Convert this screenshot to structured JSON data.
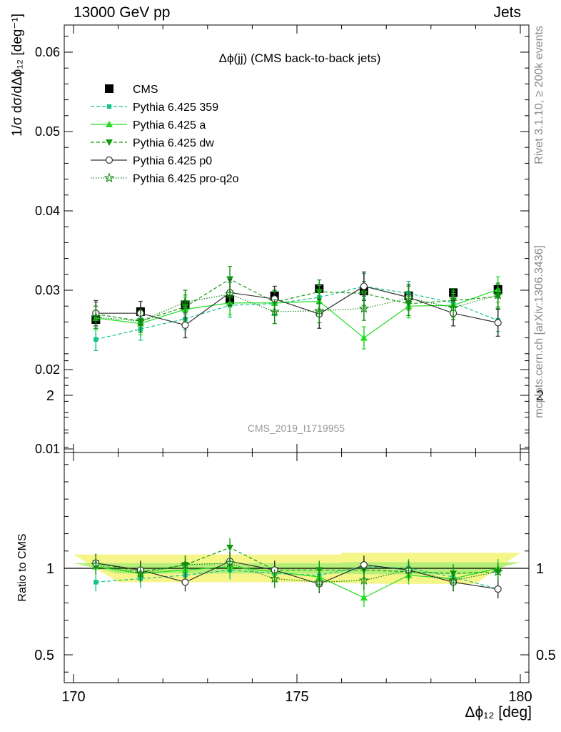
{
  "header": {
    "left": "13000 GeV pp",
    "right": "Jets"
  },
  "side_text": {
    "top": "Rivet 3.1.10, ≥ 200k events",
    "bottom": "mcplots.cern.ch [arXiv:1306.3436]"
  },
  "watermark": "CMS_2019_I1719955",
  "colors": {
    "cms": "#000000",
    "p359": "#16c28a",
    "a": "#22dd22",
    "dw": "#119911",
    "p0": "#333333",
    "proq2o": "#118811",
    "band_outer": "#f5f58a",
    "band_inner": "#b5ef7a"
  },
  "chart_data": [
    {
      "type": "line",
      "title": "Δϕ(jj) (CMS back-to-back jets)",
      "xlabel": "Δϕ₁₂ [deg]",
      "ylabel": "1/σ dσ/dΔϕ₁₂ [deg⁻¹]",
      "xlim": [
        170,
        180
      ],
      "ylim": [
        0.01,
        0.0635
      ],
      "log_y": false,
      "legend_position": "top-left",
      "x_ticks": [
        170,
        175,
        180
      ],
      "y_ticks": [
        0.01,
        0.02,
        0.03,
        0.04,
        0.05,
        0.06
      ],
      "y_tick_labels": [
        "0.01",
        "0.02",
        "0.03",
        "0.04",
        "0.05",
        "0.06"
      ],
      "x": [
        170.5,
        171.5,
        172.5,
        173.5,
        174.5,
        175.5,
        176.5,
        177.5,
        178.5,
        179.5
      ],
      "series": [
        {
          "name": "CMS",
          "key": "cms",
          "marker": "square",
          "dash": "none",
          "values": [
            0.0263,
            0.0273,
            0.0281,
            0.0288,
            0.0293,
            0.0302,
            0.0299,
            0.0293,
            0.0297,
            0.0301
          ],
          "errors": [
            0.0005,
            0.0005,
            0.0005,
            0.0005,
            0.0005,
            0.0005,
            0.0005,
            0.0005,
            0.0005,
            0.0005
          ]
        },
        {
          "name": "Pythia 6.425 359",
          "key": "p359",
          "marker": "small-square",
          "dash": "dashed",
          "values": [
            0.0238,
            0.0251,
            0.0264,
            0.0281,
            0.0283,
            0.0291,
            0.0305,
            0.0296,
            0.0284,
            0.0262
          ],
          "errors": [
            0.0014,
            0.0014,
            0.0014,
            0.0015,
            0.0015,
            0.0015,
            0.0016,
            0.0015,
            0.0015,
            0.0014
          ]
        },
        {
          "name": "Pythia 6.425 a",
          "key": "a",
          "marker": "triangle-up",
          "dash": "solid",
          "values": [
            0.0265,
            0.0258,
            0.0276,
            0.0284,
            0.0284,
            0.0286,
            0.024,
            0.028,
            0.0281,
            0.0301
          ],
          "errors": [
            0.0015,
            0.0014,
            0.0015,
            0.0015,
            0.0015,
            0.0015,
            0.0014,
            0.0015,
            0.0015,
            0.0016
          ]
        },
        {
          "name": "Pythia 6.425 dw",
          "key": "dw",
          "marker": "triangle-down",
          "dash": "dashed",
          "values": [
            0.027,
            0.0261,
            0.0279,
            0.0314,
            0.0285,
            0.0298,
            0.0296,
            0.0283,
            0.0287,
            0.0292
          ],
          "errors": [
            0.0015,
            0.0014,
            0.0015,
            0.0016,
            0.0015,
            0.0015,
            0.0015,
            0.0015,
            0.0015,
            0.0015
          ]
        },
        {
          "name": "Pythia 6.425 p0",
          "key": "p0",
          "marker": "open-circle",
          "dash": "solid",
          "values": [
            0.0271,
            0.0271,
            0.0256,
            0.0297,
            0.0289,
            0.027,
            0.0305,
            0.0291,
            0.0271,
            0.0259
          ],
          "errors": [
            0.0016,
            0.0015,
            0.0016,
            0.0016,
            0.0016,
            0.0018,
            0.0018,
            0.0016,
            0.0016,
            0.0017
          ]
        },
        {
          "name": "Pythia 6.425 pro-q2o",
          "key": "proq2o",
          "marker": "open-star",
          "dash": "dotted",
          "values": [
            0.0266,
            0.0261,
            0.0285,
            0.0295,
            0.0273,
            0.0274,
            0.0277,
            0.029,
            0.0278,
            0.0294
          ],
          "errors": [
            0.0014,
            0.0014,
            0.0015,
            0.0015,
            0.0015,
            0.0015,
            0.0015,
            0.0015,
            0.0015,
            0.0015
          ]
        }
      ]
    },
    {
      "type": "line",
      "title": "",
      "xlabel": "Δϕ₁₂ [deg]",
      "ylabel": "Ratio to CMS",
      "xlim": [
        170,
        180
      ],
      "ylim": [
        0.35,
        2.3
      ],
      "y_ticks": [
        0.5,
        1,
        2
      ],
      "y_tick_labels": [
        "0.5",
        "1",
        "2"
      ],
      "x_ticks": [
        170,
        175,
        180
      ],
      "x_tick_labels": [
        "170",
        "175",
        "180"
      ],
      "reference_line": 1,
      "band_outer": [
        0.08,
        0.08,
        0.08,
        0.08,
        0.08,
        0.08,
        0.09,
        0.09,
        0.09,
        0.09
      ],
      "band_inner": [
        0.03,
        0.03,
        0.03,
        0.03,
        0.03,
        0.03,
        0.035,
        0.035,
        0.035,
        0.035
      ],
      "x": [
        170.5,
        171.5,
        172.5,
        173.5,
        174.5,
        175.5,
        176.5,
        177.5,
        178.5,
        179.5
      ],
      "series": [
        {
          "name": "Pythia 6.425 359",
          "key": "p359",
          "marker": "small-square",
          "dash": "dashed",
          "values": [
            0.92,
            0.94,
            0.96,
            0.99,
            0.97,
            0.96,
            1.01,
            1.0,
            0.95,
            0.88
          ]
        },
        {
          "name": "Pythia 6.425 a",
          "key": "a",
          "marker": "triangle-up",
          "dash": "solid",
          "values": [
            1.01,
            0.97,
            0.99,
            1.01,
            0.98,
            0.95,
            0.83,
            0.96,
            0.94,
            1.0
          ]
        },
        {
          "name": "Pythia 6.425 dw",
          "key": "dw",
          "marker": "triangle-down",
          "dash": "dashed",
          "values": [
            1.03,
            0.98,
            1.02,
            1.12,
            0.99,
            0.99,
            0.99,
            0.98,
            0.97,
            0.98
          ]
        },
        {
          "name": "Pythia 6.425 p0",
          "key": "p0",
          "marker": "open-circle",
          "dash": "solid",
          "values": [
            1.03,
            0.99,
            0.92,
            1.04,
            0.99,
            0.91,
            1.02,
            0.99,
            0.92,
            0.88
          ]
        },
        {
          "name": "Pythia 6.425 pro-q2o",
          "key": "proq2o",
          "marker": "open-star",
          "dash": "dotted",
          "values": [
            1.02,
            0.97,
            1.02,
            1.03,
            0.94,
            0.92,
            0.93,
            0.99,
            0.93,
            0.98
          ]
        }
      ]
    }
  ]
}
